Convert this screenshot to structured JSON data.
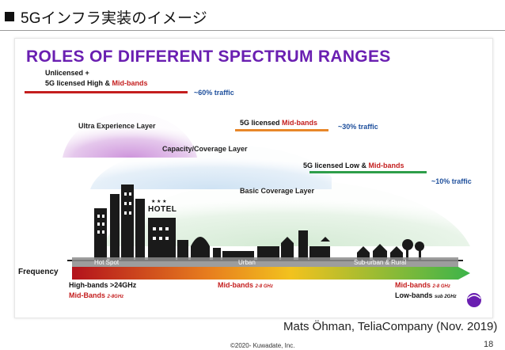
{
  "slide": {
    "title": "5Gインフラ実装のイメージ",
    "credit": "Mats Öhman, TeliaCompany (Nov. 2019)",
    "copyright": "©2020- Kuwadate, Inc.",
    "page_number": "18"
  },
  "figure": {
    "title": "ROLES OF DIFFERENT SPECTRUM RANGES",
    "bands": [
      {
        "label_line1": "Unlicensed +",
        "label_line2_a": "5G licensed  High & ",
        "label_line2_b": "Mid-bands",
        "traffic": "~60% traffic",
        "color": "#c41e1e"
      },
      {
        "label_a": "5G licensed ",
        "label_b": "Mid-bands",
        "traffic": "~30% traffic",
        "color": "#e8872a"
      },
      {
        "label_a": "5G licensed Low & ",
        "label_b": "Mid-bands",
        "traffic": "~10% traffic",
        "color": "#2e9e4a"
      }
    ],
    "layers": {
      "ultra": "Ultra Experience Layer",
      "capacity": "Capacity/Coverage Layer",
      "basic": "Basic Coverage Layer"
    },
    "city": {
      "hotel_sign": "HOTEL",
      "stars": "★ ★ ★"
    },
    "frequency_bar": {
      "label": "Frequency",
      "zones": [
        "Hot Spot",
        "Urban",
        "Sub-urban & Rural"
      ]
    },
    "band_labels": {
      "left_line1": "High-bands >24GHz",
      "left_line2_a": "Mid-Bands ",
      "left_line2_b": "2-8GHz",
      "mid_a": "Mid-bands ",
      "mid_b": "2-8 GHz",
      "right_line1_a": "Mid-bands ",
      "right_line1_b": "2-8 GHz",
      "right_line2_a": "Low-bands ",
      "right_line2_b": "sub 2GHz"
    }
  }
}
